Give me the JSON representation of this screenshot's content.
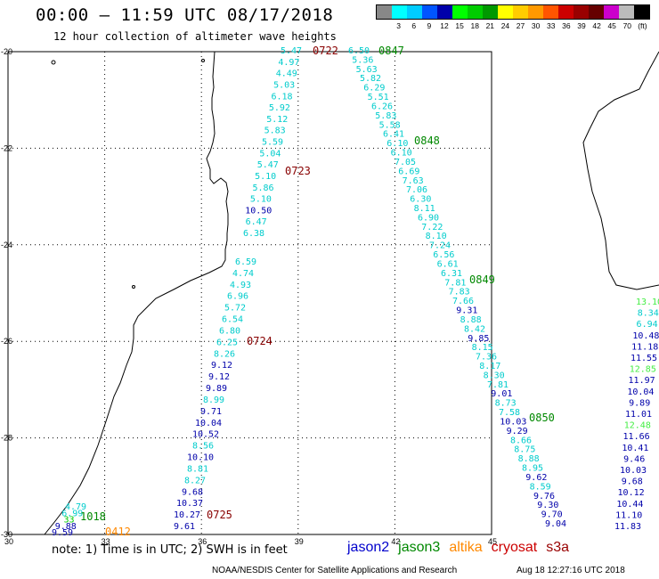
{
  "header": {
    "title": "00:00 – 11:59 UTC 08/17/2018",
    "subtitle": "12 hour collection of altimeter wave heights"
  },
  "legend": {
    "colors": [
      "#888888",
      "#00ffff",
      "#00ccff",
      "#0055ff",
      "#0000aa",
      "#00ff00",
      "#00cc00",
      "#009900",
      "#ffff00",
      "#ffcc00",
      "#ff9900",
      "#ff5500",
      "#cc0000",
      "#990000",
      "#660000",
      "#cc00cc",
      "#bbbbbb",
      "#000000"
    ],
    "labels": [
      "3",
      "6",
      "9",
      "12",
      "15",
      "18",
      "21",
      "24",
      "27",
      "30",
      "33",
      "36",
      "39",
      "42",
      "45",
      "70",
      "(ft)"
    ]
  },
  "axes": {
    "lat_labels": [
      "-20",
      "-22",
      "-24",
      "-26",
      "-28",
      "-30"
    ],
    "lon_labels": [
      "30",
      "33",
      "36",
      "39",
      "42",
      "45"
    ]
  },
  "tracks": [
    {
      "time": "0722",
      "satellite": "cryosat",
      "values": [
        "5.47",
        "4.97",
        "4.49",
        "5.03",
        "6.18",
        "5.92",
        "5.12",
        "5.83",
        "5.59",
        "5.04",
        "5.47",
        "5.10",
        "5.86",
        "5.10",
        "10.50",
        "6.47",
        "6.38"
      ]
    },
    {
      "time": "0723",
      "satellite": "cryosat",
      "values": []
    },
    {
      "time": "0724",
      "satellite": "cryosat",
      "values": [
        "6.59",
        "4.74",
        "4.93",
        "6.96",
        "5.72",
        "6.54",
        "6.80",
        "6.25",
        "8.26",
        "9.12",
        "9.12",
        "9.89",
        "8.99",
        "9.71",
        "10.04",
        "10.52",
        "8.56",
        "10.10",
        "8.81",
        "8.27",
        "9.68",
        "10.37",
        "10.27",
        "9.61"
      ]
    },
    {
      "time": "0725",
      "satellite": "cryosat",
      "values": []
    },
    {
      "time": "0847",
      "satellite": "jason3",
      "values": [
        "6.50",
        "5.36",
        "5.63",
        "5.82",
        "6.29",
        "5.51",
        "6.26",
        "5.83",
        "5.58",
        "6.41",
        "6.10",
        "6.10",
        "7.05",
        "6.69",
        "7.63",
        "7.06",
        "6.30",
        "8.11",
        "6.90",
        "7.22",
        "8.10",
        "7.24",
        "6.56",
        "6.61",
        "6.31",
        "7.81",
        "7.83",
        "7.66",
        "9.31",
        "8.88",
        "8.42",
        "9.85",
        "8.15",
        "7.36",
        "8.17",
        "8.30",
        "7.81",
        "9.01",
        "8.73",
        "7.58",
        "10.03",
        "9.29",
        "8.66",
        "8.75",
        "8.88",
        "8.95",
        "9.62",
        "8.59",
        "9.76",
        "9.30",
        "9.70",
        "9.04"
      ]
    },
    {
      "time": "0848",
      "satellite": "jason3",
      "values": []
    },
    {
      "time": "0849",
      "satellite": "jason3",
      "values": []
    },
    {
      "time": "0850",
      "satellite": "jason3",
      "values": []
    },
    {
      "time": "1018",
      "satellite": "jason3",
      "values": [
        "4.79",
        "6.99",
        "33",
        "9.88",
        "9.59"
      ]
    },
    {
      "time": "0412",
      "satellite": "altika",
      "values": []
    },
    {
      "satellite": "jason2",
      "values": [
        "13.10",
        "8.34",
        "6.94",
        "10.48",
        "11.18",
        "11.55",
        "12.85",
        "11.97",
        "10.04",
        "9.89",
        "11.01",
        "12.48",
        "11.66",
        "10.41",
        "9.46",
        "10.03",
        "9.68",
        "10.12",
        "10.44",
        "11.10",
        "11.83"
      ]
    }
  ],
  "note": "note: 1) Time is in UTC; 2) SWH is in feet",
  "satellites": [
    {
      "name": "jason2",
      "color": "#0000cc"
    },
    {
      "name": "jason3",
      "color": "#008800"
    },
    {
      "name": "altika",
      "color": "#ff8800"
    },
    {
      "name": "cryosat",
      "color": "#cc0000"
    },
    {
      "name": "s3a",
      "color": "#990000"
    }
  ],
  "credit": "NOAA/NESDIS Center for Satellite Applications and Research",
  "timestamp": "Aug 18 12:27:16 UTC 2018"
}
